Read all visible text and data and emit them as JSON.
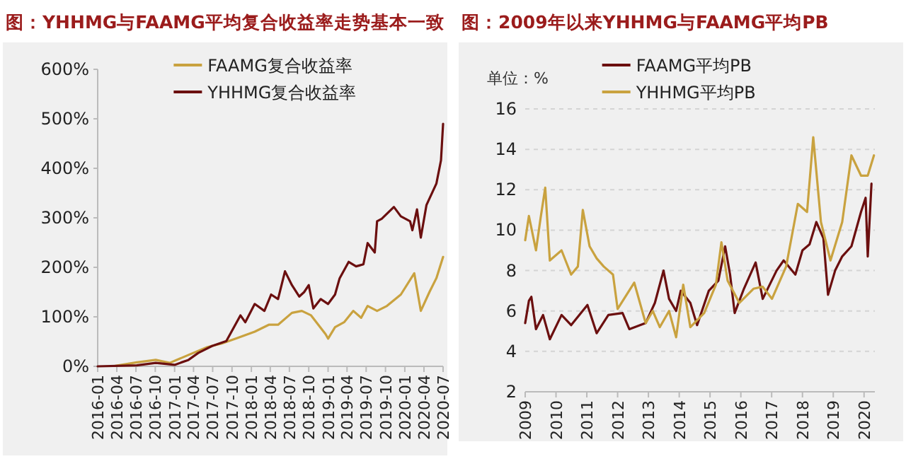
{
  "chart_data": [
    {
      "type": "line",
      "title": "图：YHHMG与FAAMG平均复合收益率走势基本一致",
      "legend": "top",
      "grid": false,
      "xlim": [
        "2016-01",
        "2020-07"
      ],
      "ylim": [
        0,
        600
      ],
      "xticks": [
        "2016-01",
        "2016-04",
        "2016-07",
        "2016-10",
        "2017-01",
        "2017-04",
        "2017-07",
        "2017-10",
        "2018-01",
        "2018-04",
        "2018-07",
        "2018-10",
        "2019-01",
        "2019-04",
        "2019-07",
        "2019-10",
        "2020-01",
        "2020-04",
        "2020-07"
      ],
      "yticks": [
        {
          "value": 0,
          "label": "0%"
        },
        {
          "value": 100,
          "label": "100%"
        },
        {
          "value": 200,
          "label": "200%"
        },
        {
          "value": 300,
          "label": "300%"
        },
        {
          "value": 400,
          "label": "400%"
        },
        {
          "value": 500,
          "label": "500%"
        },
        {
          "value": 600,
          "label": "600%"
        }
      ],
      "series": [
        {
          "name": "FAAMG复合收益率",
          "color": "#c9a23f",
          "x": [
            "2016-03-25",
            "2016-07-05",
            "2016-10-03",
            "2016-12-09",
            "2017-03-08",
            "2017-06-06",
            "2017-08-13",
            "2017-10-19",
            "2018-01-17",
            "2018-03-25",
            "2018-05-08",
            "2018-07-13",
            "2018-08-29",
            "2018-10-12",
            "2018-12-20",
            "2019-01-01",
            "2019-02-03",
            "2019-03-18",
            "2019-05-01",
            "2019-06-07",
            "2019-07-08",
            "2019-08-22",
            "2019-10-08",
            "2019-12-13",
            "2020-02-15",
            "2020-03-17",
            "2020-04-27",
            "2020-05-30",
            "2020-07-01"
          ],
          "values": [
            1,
            8,
            13,
            7,
            23,
            39,
            46,
            56,
            70,
            84,
            84,
            108,
            112,
            103,
            65,
            56,
            79,
            89,
            112,
            98,
            122,
            112,
            122,
            145,
            188,
            112,
            150,
            178,
            221
          ]
        },
        {
          "name": "YHHMG复合收益率",
          "color": "#6b0f0f",
          "x": [
            "2016-01-01",
            "2016-07-05",
            "2016-10-03",
            "2017-01-01",
            "2017-03-08",
            "2017-04-23",
            "2017-06-28",
            "2017-09-04",
            "2017-11-10",
            "2017-12-03",
            "2018-01-17",
            "2018-03-04",
            "2018-04-05",
            "2018-05-08",
            "2018-06-10",
            "2018-07-13",
            "2018-08-17",
            "2018-09-09",
            "2018-10-01",
            "2018-10-23",
            "2018-11-27",
            "2019-01-01",
            "2019-02-03",
            "2019-02-25",
            "2019-04-09",
            "2019-05-14",
            "2019-06-18",
            "2019-07-08",
            "2019-08-11",
            "2019-08-22",
            "2019-09-13",
            "2019-11-10",
            "2019-12-13",
            "2020-01-26",
            "2020-02-06",
            "2020-02-28",
            "2020-03-17",
            "2020-04-13",
            "2020-05-30",
            "2020-06-21",
            "2020-07-01"
          ],
          "values": [
            0,
            2,
            7,
            3,
            13,
            27,
            41,
            51,
            103,
            89,
            126,
            112,
            145,
            136,
            192,
            164,
            141,
            150,
            164,
            117,
            136,
            126,
            145,
            178,
            211,
            202,
            206,
            249,
            230,
            293,
            298,
            322,
            303,
            293,
            275,
            317,
            260,
            326,
            369,
            416,
            490
          ]
        }
      ]
    },
    {
      "type": "line",
      "title": "图：2009年以来YHHMG与FAAMG平均PB",
      "ylabel": "单位：%",
      "legend": "top",
      "grid": "y",
      "xlim": [
        2009,
        2020.35
      ],
      "ylim": [
        2,
        16
      ],
      "xticks": [
        2009,
        2010,
        2011,
        2012,
        2013,
        2014,
        2015,
        2016,
        2017,
        2018,
        2019,
        2020
      ],
      "yticks": [
        2,
        4,
        6,
        8,
        10,
        12,
        14,
        16
      ],
      "series": [
        {
          "name": "FAAMG平均PB",
          "color": "#6b0f0f",
          "x": [
            2009.0,
            2009.12,
            2009.2,
            2009.35,
            2009.58,
            2009.8,
            2010.18,
            2010.49,
            2011.02,
            2011.32,
            2011.7,
            2012.16,
            2012.38,
            2012.91,
            2013.21,
            2013.49,
            2013.67,
            2013.9,
            2014.05,
            2014.36,
            2014.58,
            2014.96,
            2015.27,
            2015.49,
            2015.65,
            2015.8,
            2016.1,
            2016.48,
            2016.71,
            2017.16,
            2017.39,
            2017.77,
            2018.0,
            2018.23,
            2018.45,
            2018.68,
            2018.83,
            2019.06,
            2019.29,
            2019.59,
            2019.9,
            2020.05,
            2020.12,
            2020.24
          ],
          "values": [
            5.4,
            6.5,
            6.7,
            5.1,
            5.8,
            4.6,
            5.8,
            5.3,
            6.3,
            4.9,
            5.8,
            5.9,
            5.1,
            5.4,
            6.4,
            8.0,
            6.6,
            6.0,
            7.0,
            6.4,
            5.3,
            7.0,
            7.5,
            9.2,
            7.8,
            5.9,
            7.1,
            8.4,
            6.6,
            8.0,
            8.5,
            7.8,
            9.0,
            9.3,
            10.4,
            9.6,
            6.8,
            8.0,
            8.7,
            9.2,
            10.9,
            11.6,
            8.7,
            12.3
          ]
        },
        {
          "name": "YHHMG平均PB",
          "color": "#c9a23f",
          "x": [
            2009.0,
            2009.12,
            2009.35,
            2009.5,
            2009.65,
            2009.8,
            2010.18,
            2010.49,
            2010.71,
            2010.87,
            2011.09,
            2011.32,
            2011.55,
            2011.85,
            2012.0,
            2012.54,
            2012.91,
            2013.14,
            2013.37,
            2013.67,
            2013.9,
            2014.13,
            2014.36,
            2014.81,
            2015.19,
            2015.37,
            2015.57,
            2015.95,
            2016.41,
            2016.71,
            2017.01,
            2017.47,
            2017.85,
            2018.15,
            2018.35,
            2018.6,
            2018.91,
            2019.29,
            2019.59,
            2019.9,
            2020.12,
            2020.32
          ],
          "values": [
            9.5,
            10.7,
            9.0,
            10.6,
            12.1,
            8.5,
            9.0,
            7.8,
            8.2,
            11.0,
            9.2,
            8.6,
            8.2,
            7.8,
            6.1,
            7.4,
            5.4,
            6.0,
            5.2,
            6.0,
            4.7,
            7.3,
            5.2,
            5.9,
            7.3,
            9.4,
            7.5,
            6.4,
            7.1,
            7.2,
            6.6,
            8.2,
            11.3,
            10.9,
            14.6,
            10.4,
            8.5,
            10.4,
            13.7,
            12.7,
            12.7,
            13.7
          ]
        }
      ]
    }
  ]
}
